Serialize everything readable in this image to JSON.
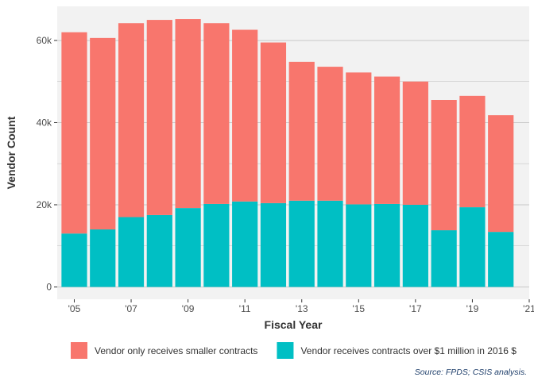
{
  "chart_data": {
    "type": "bar",
    "stacked": true,
    "title": "",
    "xlabel": "Fiscal Year",
    "ylabel": "Vendor Count",
    "x": [
      2005,
      2006,
      2007,
      2008,
      2009,
      2010,
      2011,
      2012,
      2013,
      2014,
      2015,
      2016,
      2017,
      2018,
      2019,
      2020
    ],
    "x_ticks": [
      2005,
      2007,
      2009,
      2011,
      2013,
      2015,
      2017,
      2019,
      2021
    ],
    "x_tick_labels": [
      "'05",
      "'07",
      "'09",
      "'11",
      "'13",
      "'15",
      "'17",
      "'19",
      "'21"
    ],
    "xlim": [
      2004.4,
      2021.0
    ],
    "ylim": [
      -3000,
      68300
    ],
    "y_ticks": [
      0,
      20000,
      40000,
      60000
    ],
    "y_tick_labels": [
      "0",
      "20k",
      "40k",
      "60k"
    ],
    "grid": true,
    "legend_position": "bottom",
    "series": [
      {
        "name": "Vendor receives contracts over $1 million in 2016 $",
        "color": "#00BFC4",
        "values": [
          13000,
          14000,
          17000,
          17500,
          19200,
          20200,
          20800,
          20400,
          21000,
          21000,
          20100,
          20200,
          20000,
          13800,
          19400,
          13400
        ]
      },
      {
        "name": "Vendor only receives smaller contracts",
        "color": "#F8766D",
        "values": [
          49000,
          46600,
          47200,
          47500,
          46000,
          44000,
          41800,
          39100,
          33800,
          32600,
          32100,
          31000,
          30000,
          31700,
          27100,
          28400
        ]
      }
    ],
    "legend_order": [
      1,
      0
    ],
    "panel_background": "#F2F2F2",
    "gridline_color": "#C8C8C8",
    "source": "Source: FPDS; CSIS analysis."
  }
}
